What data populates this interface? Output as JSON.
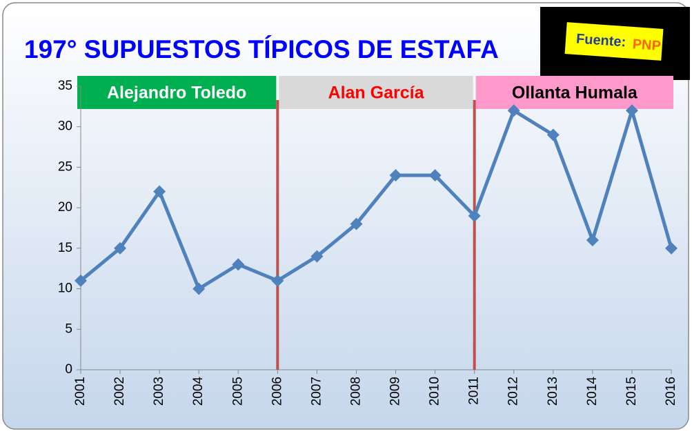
{
  "chart_data": {
    "type": "line",
    "title": "197°  SUPUESTOS TÍPICOS DE ESTAFA",
    "categories": [
      "2001",
      "2002",
      "2003",
      "2004",
      "2005",
      "2006",
      "2007",
      "2008",
      "2009",
      "2010",
      "2011",
      "2012",
      "2013",
      "2014",
      "2015",
      "2016"
    ],
    "values": [
      11,
      15,
      22,
      10,
      13,
      11,
      14,
      18,
      24,
      24,
      19,
      32,
      29,
      16,
      32,
      15
    ],
    "color": "#4f81bd",
    "ylim": [
      0,
      35
    ],
    "yticks": [
      0,
      5,
      10,
      15,
      20,
      25,
      30,
      35
    ],
    "grid": false,
    "dividers": [
      "2006",
      "2011"
    ],
    "divider_color": "#c0504d",
    "periods": [
      {
        "label": "Alejandro Toledo",
        "fill": "#00b050",
        "text_color": "#ffffff"
      },
      {
        "label": "Alan García",
        "fill": "#d9d9d9",
        "text_color": "#ff0000"
      },
      {
        "label": "Ollanta Humala",
        "fill": "#ff99cc",
        "text_color": "#000000"
      }
    ],
    "source": {
      "label": "Fuente:",
      "value": "PNP"
    }
  }
}
